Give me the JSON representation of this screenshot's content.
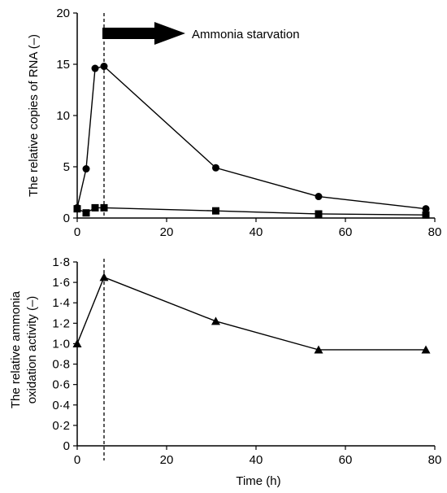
{
  "chart_data": [
    {
      "type": "line",
      "panel": "top",
      "ylabel": "The relative copies of RNA (–)",
      "xlabel": "",
      "xlim": [
        0,
        80
      ],
      "ylim": [
        0,
        20
      ],
      "xticks": [
        "0",
        "20",
        "40",
        "60",
        "80"
      ],
      "yticks": [
        "0",
        "5",
        "10",
        "15",
        "20"
      ],
      "series": [
        {
          "marker": "circle",
          "x": [
            0,
            2,
            4,
            6,
            31,
            54,
            78
          ],
          "y": [
            1.0,
            4.8,
            14.6,
            14.8,
            4.9,
            2.1,
            0.9
          ]
        },
        {
          "marker": "square",
          "x": [
            0,
            2,
            4,
            6,
            31,
            54,
            78
          ],
          "y": [
            0.9,
            0.5,
            1.0,
            1.0,
            0.7,
            0.4,
            0.3
          ]
        }
      ],
      "annotations": {
        "vline_x": 6,
        "arrow_label": "Ammonia starvation"
      }
    },
    {
      "type": "line",
      "panel": "bottom",
      "ylabel_line1": "The relative ammonia",
      "ylabel_line2": "oxidation activity (–)",
      "xlabel": "Time (h)",
      "xlim": [
        0,
        80
      ],
      "ylim": [
        0,
        1.8
      ],
      "xticks": [
        "0",
        "20",
        "40",
        "60",
        "80"
      ],
      "yticks": [
        "0",
        "0·2",
        "0·4",
        "0·6",
        "0·8",
        "1·0",
        "1·2",
        "1·4",
        "1·6",
        "1·8"
      ],
      "series": [
        {
          "marker": "triangle",
          "x": [
            0,
            6,
            31,
            54,
            78
          ],
          "y": [
            1.0,
            1.65,
            1.22,
            0.94,
            0.94
          ]
        }
      ],
      "annotations": {
        "vline_x": 6
      }
    }
  ]
}
